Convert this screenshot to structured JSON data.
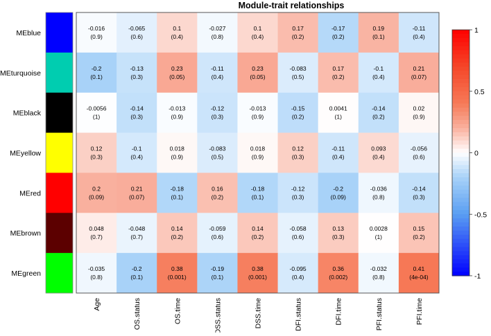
{
  "chart_data": {
    "type": "heatmap",
    "title": "Module-trait relationships",
    "rows": [
      "MEblue",
      "MEturquoise",
      "MEblack",
      "MEyellow",
      "MEred",
      "MEbrown",
      "MEgreen"
    ],
    "row_colors": [
      "#0000FF",
      "#00CDB0",
      "#000000",
      "#FFFF00",
      "#FF0000",
      "#5C0000",
      "#00FF00"
    ],
    "columns": [
      "Age",
      "OS.status",
      "OS.time",
      "DSS.status",
      "DSS.time",
      "DFI.status",
      "DFI.time",
      "PFI.status",
      "PFI.time"
    ],
    "values": [
      [
        -0.016,
        -0.065,
        0.1,
        -0.027,
        0.1,
        0.17,
        -0.17,
        0.19,
        -0.11
      ],
      [
        -0.2,
        -0.13,
        0.23,
        -0.11,
        0.23,
        -0.083,
        0.17,
        -0.1,
        0.21
      ],
      [
        -0.0056,
        -0.14,
        -0.013,
        -0.12,
        -0.013,
        -0.15,
        0.0041,
        -0.14,
        0.02
      ],
      [
        0.12,
        -0.1,
        0.018,
        -0.083,
        0.018,
        0.12,
        -0.11,
        0.093,
        -0.056
      ],
      [
        0.2,
        0.21,
        -0.18,
        0.16,
        -0.18,
        -0.12,
        -0.2,
        -0.036,
        -0.14
      ],
      [
        0.048,
        -0.048,
        0.14,
        -0.059,
        0.14,
        -0.058,
        0.13,
        0.0028,
        0.15
      ],
      [
        -0.035,
        -0.2,
        0.38,
        -0.19,
        0.38,
        -0.095,
        0.36,
        -0.032,
        0.41
      ]
    ],
    "value_labels": [
      [
        "-0.016",
        "-0.065",
        "0.1",
        "-0.027",
        "0.1",
        "0.17",
        "-0.17",
        "0.19",
        "-0.11"
      ],
      [
        "-0.2",
        "-0.13",
        "0.23",
        "-0.11",
        "0.23",
        "-0.083",
        "0.17",
        "-0.1",
        "0.21"
      ],
      [
        "-0.0056",
        "-0.14",
        "-0.013",
        "-0.12",
        "-0.013",
        "-0.15",
        "0.0041",
        "-0.14",
        "0.02"
      ],
      [
        "0.12",
        "-0.1",
        "0.018",
        "-0.083",
        "0.018",
        "0.12",
        "-0.11",
        "0.093",
        "-0.056"
      ],
      [
        "0.2",
        "0.21",
        "-0.18",
        "0.16",
        "-0.18",
        "-0.12",
        "-0.2",
        "-0.036",
        "-0.14"
      ],
      [
        "0.048",
        "-0.048",
        "0.14",
        "-0.059",
        "0.14",
        "-0.058",
        "0.13",
        "0.0028",
        "0.15"
      ],
      [
        "-0.035",
        "-0.2",
        "0.38",
        "-0.19",
        "0.38",
        "-0.095",
        "0.36",
        "-0.032",
        "0.41"
      ]
    ],
    "pvalue_labels": [
      [
        "(0.9)",
        "(0.6)",
        "(0.4)",
        "(0.8)",
        "(0.4)",
        "(0.2)",
        "(0.2)",
        "(0.1)",
        "(0.4)"
      ],
      [
        "(0.1)",
        "(0.3)",
        "(0.05)",
        "(0.4)",
        "(0.05)",
        "(0.5)",
        "(0.2)",
        "(0.4)",
        "(0.07)"
      ],
      [
        "(1)",
        "(0.3)",
        "(0.9)",
        "(0.3)",
        "(0.9)",
        "(0.2)",
        "(1)",
        "(0.2)",
        "(0.9)"
      ],
      [
        "(0.3)",
        "(0.4)",
        "(0.9)",
        "(0.5)",
        "(0.9)",
        "(0.3)",
        "(0.4)",
        "(0.4)",
        "(0.6)"
      ],
      [
        "(0.09)",
        "(0.07)",
        "(0.1)",
        "(0.2)",
        "(0.1)",
        "(0.3)",
        "(0.09)",
        "(0.8)",
        "(0.3)"
      ],
      [
        "(0.7)",
        "(0.7)",
        "(0.2)",
        "(0.6)",
        "(0.2)",
        "(0.6)",
        "(0.3)",
        "(1)",
        "(0.2)"
      ],
      [
        "(0.8)",
        "(0.1)",
        "(0.001)",
        "(0.1)",
        "(0.001)",
        "(0.4)",
        "(0.002)",
        "(0.8)",
        "(4e-04)"
      ]
    ],
    "colorbar": {
      "range": [
        -1,
        1
      ],
      "ticks": [
        1,
        0.5,
        0,
        -0.5,
        -1
      ],
      "tick_labels": [
        "1",
        "0.5",
        "0",
        "-0.5",
        "-1"
      ]
    },
    "colormap": "blue-white-red"
  }
}
